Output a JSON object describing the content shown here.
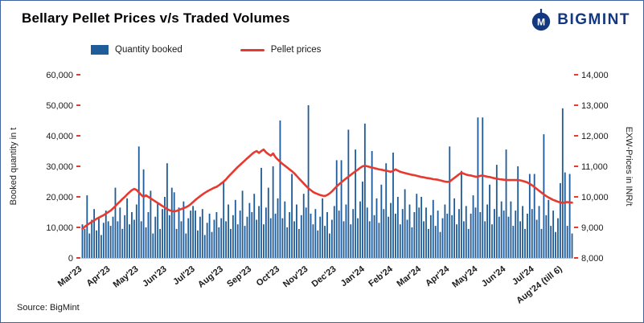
{
  "header": {
    "title": "Bellary Pellet Prices v/s Traded Volumes",
    "brand": "BIGMINT"
  },
  "legend": {
    "items": [
      {
        "label": "Quantity booked"
      },
      {
        "label": "Pellet prices"
      }
    ]
  },
  "footer": {
    "source": "Source: BigMint"
  },
  "chart_data": {
    "type": "bar",
    "overlay_type": "line",
    "title": "Bellary Pellet Prices v/s Traded Volumes",
    "left_axis": {
      "label": "Booked quantity in t",
      "min": 0,
      "max": 60000,
      "ticks": [
        0,
        10000,
        20000,
        30000,
        40000,
        50000,
        60000
      ]
    },
    "right_axis": {
      "label": "EXW-Prices in INR/t",
      "min": 8000,
      "max": 14000,
      "ticks": [
        8000,
        9000,
        10000,
        11000,
        12000,
        13000,
        14000
      ]
    },
    "series": [
      {
        "name": "Quantity booked",
        "type": "bar",
        "axis": "left"
      },
      {
        "name": "Pellet prices",
        "type": "line",
        "axis": "right"
      }
    ],
    "colors": {
      "bar": "#1F5C99",
      "line": "#E63A31",
      "tick": "#E63A31"
    },
    "months": [
      {
        "label": "Mar'23",
        "bars": [
          11000,
          9500,
          20500,
          8000,
          12500,
          16000,
          9000,
          13000,
          7500,
          11500,
          15500,
          12000
        ],
        "prices": [
          8950,
          9020,
          9080,
          9130,
          9180,
          9230,
          9280,
          9320,
          9360,
          9400,
          9450,
          9500
        ]
      },
      {
        "label": "Apr'23",
        "bars": [
          10500,
          13500,
          23000,
          12000,
          16500,
          9500,
          14000,
          19500,
          11000,
          15000,
          12500,
          17500
        ],
        "prices": [
          9550,
          9620,
          9700,
          9780,
          9850,
          9930,
          10000,
          10080,
          10150,
          10220,
          10260,
          10230
        ]
      },
      {
        "label": "May'23",
        "bars": [
          36500,
          12000,
          29000,
          10000,
          15000,
          22000,
          8000,
          13500,
          18000,
          9500,
          16000,
          20000
        ],
        "prices": [
          10150,
          10060,
          10000,
          10050,
          10000,
          9950,
          9900,
          9850,
          9800,
          9750,
          9700,
          9650
        ]
      },
      {
        "label": "Jun'23",
        "bars": [
          31000,
          14000,
          23000,
          21500,
          9500,
          16500,
          12000,
          18500,
          8000,
          13000,
          15500,
          17000
        ],
        "prices": [
          9600,
          9560,
          9540,
          9520,
          9540,
          9570,
          9600,
          9630,
          9660,
          9700,
          9760,
          9830
        ]
      },
      {
        "label": "Jul'23",
        "bars": [
          15500,
          9000,
          13500,
          16000,
          7500,
          11500,
          14500,
          8500,
          12500,
          15000,
          10000,
          13000
        ],
        "prices": [
          9900,
          9960,
          10020,
          10080,
          10130,
          10180,
          10220,
          10260,
          10300,
          10330,
          10380,
          10440
        ]
      },
      {
        "label": "Aug'23",
        "bars": [
          25000,
          12000,
          17500,
          9500,
          14000,
          19000,
          11000,
          15500,
          22000,
          10500,
          13500,
          18000
        ],
        "prices": [
          10500,
          10570,
          10660,
          10740,
          10820,
          10900,
          10980,
          11050,
          11120,
          11190,
          11260,
          11330
        ]
      },
      {
        "label": "Sep'23",
        "bars": [
          15000,
          21000,
          12500,
          17000,
          29500,
          11000,
          16500,
          23000,
          13000,
          30000,
          14500,
          19500
        ],
        "prices": [
          11400,
          11460,
          11500,
          11440,
          11500,
          11550,
          11460,
          11400,
          11350,
          11420,
          11300,
          11220
        ]
      },
      {
        "label": "Oct'23",
        "bars": [
          45000,
          13000,
          18500,
          10000,
          15000,
          27500,
          12000,
          17500,
          9500,
          14000,
          21000,
          16500
        ],
        "prices": [
          11150,
          11080,
          11020,
          10960,
          10900,
          10840,
          10770,
          10690,
          10600,
          10520,
          10440,
          10360
        ]
      },
      {
        "label": "Nov'23",
        "bars": [
          50000,
          14500,
          11000,
          16000,
          9000,
          13500,
          19500,
          10500,
          15000,
          8000,
          12500,
          17000
        ],
        "prices": [
          10280,
          10220,
          10160,
          10120,
          10090,
          10060,
          10040,
          10030,
          10060,
          10110,
          10180,
          10260
        ]
      },
      {
        "label": "Dec'23",
        "bars": [
          32000,
          15500,
          32000,
          12000,
          17500,
          42000,
          11000,
          16000,
          35500,
          13000,
          18500,
          25000
        ],
        "prices": [
          10340,
          10410,
          10480,
          10540,
          10600,
          10660,
          10720,
          10780,
          10840,
          10890,
          10950,
          11000
        ]
      },
      {
        "label": "Jan'24",
        "bars": [
          44000,
          16500,
          12000,
          35000,
          14000,
          19500,
          11500,
          24000,
          16000,
          31000,
          13500,
          18000
        ],
        "prices": [
          11020,
          11000,
          10980,
          10960,
          10940,
          10920,
          10900,
          10890,
          10870,
          10860,
          10840,
          10820
        ]
      },
      {
        "label": "Feb'24",
        "bars": [
          34500,
          14500,
          20000,
          11000,
          16000,
          22500,
          12500,
          17500,
          10000,
          15000,
          21000,
          16500
        ],
        "prices": [
          10850,
          10900,
          10860,
          10820,
          10800,
          10780,
          10760,
          10740,
          10720,
          10710,
          10690,
          10670
        ]
      },
      {
        "label": "Mar'24",
        "bars": [
          20000,
          12000,
          16500,
          9500,
          14000,
          19000,
          10500,
          15500,
          8500,
          13000,
          17500,
          14500
        ],
        "prices": [
          10650,
          10640,
          10620,
          10610,
          10600,
          10580,
          10570,
          10560,
          10540,
          10520,
          10500,
          10490
        ]
      },
      {
        "label": "Apr'24",
        "bars": [
          36500,
          14000,
          19500,
          11000,
          16000,
          28500,
          12000,
          17000,
          9500,
          14500,
          20500,
          16500
        ],
        "prices": [
          10500,
          10560,
          10620,
          10680,
          10740,
          10790,
          10760,
          10730,
          10710,
          10700,
          10680,
          10660
        ]
      },
      {
        "label": "May'24",
        "bars": [
          46000,
          15000,
          46000,
          12000,
          17500,
          24000,
          11000,
          16000,
          30500,
          13500,
          18500,
          15500
        ],
        "prices": [
          10660,
          10690,
          10700,
          10680,
          10660,
          10650,
          10630,
          10610,
          10600,
          10580,
          10570,
          10560
        ]
      },
      {
        "label": "Jun'24",
        "bars": [
          35500,
          13500,
          18500,
          10500,
          15500,
          30000,
          12000,
          17000,
          9500,
          14500,
          27500,
          16000
        ],
        "prices": [
          10550,
          10550,
          10550,
          10550,
          10550,
          10550,
          10540,
          10520,
          10500,
          10470,
          10430,
          10380
        ]
      },
      {
        "label": "Jul'24",
        "bars": [
          27500,
          12500,
          17000,
          9500,
          40500,
          14000,
          19000,
          10500,
          15500,
          8500,
          13000,
          24500
        ],
        "prices": [
          10320,
          10260,
          10200,
          10140,
          10080,
          10030,
          9980,
          9940,
          9900,
          9870,
          9840,
          9820
        ]
      },
      {
        "label": "Aug'24 (till 6)",
        "bars": [
          49000,
          28000,
          10500,
          27500,
          8000
        ],
        "prices": [
          9800,
          9820,
          9830,
          9820,
          9810
        ]
      }
    ]
  }
}
